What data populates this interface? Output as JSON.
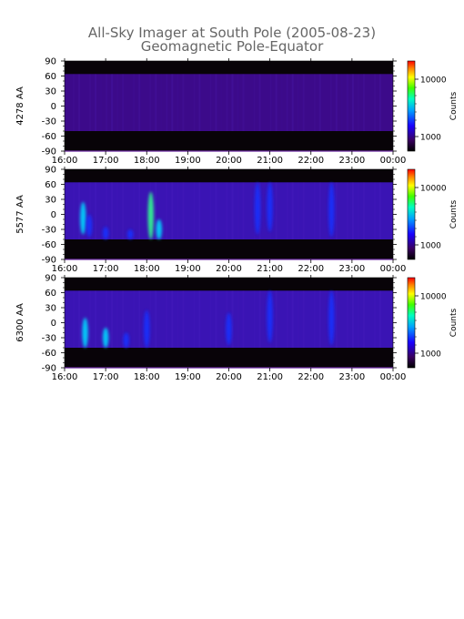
{
  "chart_data": [
    {
      "type": "heatmap",
      "ylabel": "4278 AA",
      "x_ticks": [
        "16:00",
        "17:00",
        "18:00",
        "19:00",
        "20:00",
        "21:00",
        "22:00",
        "23:00",
        "00:00"
      ],
      "y_ticks": [
        90,
        60,
        30,
        0,
        -30,
        -60,
        -90
      ],
      "ylim": [
        -90,
        90
      ],
      "x_range_hours": [
        16,
        24
      ],
      "colorbar": {
        "label": "Counts",
        "ticks": [
          "10000",
          "1000"
        ],
        "scale": "log"
      },
      "data_band": [
        -50,
        64
      ],
      "features": []
    },
    {
      "type": "heatmap",
      "ylabel": "5577 AA",
      "x_ticks": [
        "16:00",
        "17:00",
        "18:00",
        "19:00",
        "20:00",
        "21:00",
        "22:00",
        "23:00",
        "00:00"
      ],
      "y_ticks": [
        90,
        60,
        30,
        0,
        -30,
        -60,
        -90
      ],
      "ylim": [
        -90,
        90
      ],
      "x_range_hours": [
        16,
        24
      ],
      "colorbar": {
        "label": "Counts",
        "ticks": [
          "10000",
          "1000"
        ],
        "scale": "log"
      },
      "data_band": [
        -50,
        64
      ],
      "features": [
        {
          "t": 16.45,
          "lat_from": -40,
          "lat_to": 25,
          "level": "cyan"
        },
        {
          "t": 16.6,
          "lat_from": -45,
          "lat_to": 0,
          "level": "blue"
        },
        {
          "t": 17.0,
          "lat_from": -50,
          "lat_to": -25,
          "level": "blue"
        },
        {
          "t": 17.6,
          "lat_from": -50,
          "lat_to": -30,
          "level": "blue"
        },
        {
          "t": 18.1,
          "lat_from": -50,
          "lat_to": 45,
          "level": "green"
        },
        {
          "t": 18.3,
          "lat_from": -50,
          "lat_to": -10,
          "level": "cyan"
        },
        {
          "t": 20.7,
          "lat_from": -40,
          "lat_to": 64,
          "level": "blue"
        },
        {
          "t": 21.0,
          "lat_from": -35,
          "lat_to": 64,
          "level": "blue"
        },
        {
          "t": 22.5,
          "lat_from": -45,
          "lat_to": 64,
          "level": "blue"
        }
      ]
    },
    {
      "type": "heatmap",
      "ylabel": "6300 AA",
      "x_ticks": [
        "16:00",
        "17:00",
        "18:00",
        "19:00",
        "20:00",
        "21:00",
        "22:00",
        "23:00",
        "00:00"
      ],
      "y_ticks": [
        90,
        60,
        30,
        0,
        -30,
        -60,
        -90
      ],
      "ylim": [
        -90,
        90
      ],
      "x_range_hours": [
        16,
        24
      ],
      "colorbar": {
        "label": "Counts",
        "ticks": [
          "10000",
          "1000"
        ],
        "scale": "log"
      },
      "data_band": [
        -50,
        64
      ],
      "features": [
        {
          "t": 16.5,
          "lat_from": -50,
          "lat_to": 10,
          "level": "cyan"
        },
        {
          "t": 17.0,
          "lat_from": -50,
          "lat_to": -10,
          "level": "cyan"
        },
        {
          "t": 17.5,
          "lat_from": -50,
          "lat_to": -20,
          "level": "blue"
        },
        {
          "t": 18.0,
          "lat_from": -50,
          "lat_to": 25,
          "level": "blue"
        },
        {
          "t": 20.0,
          "lat_from": -45,
          "lat_to": 20,
          "level": "blue"
        },
        {
          "t": 21.0,
          "lat_from": -40,
          "lat_to": 64,
          "level": "blue"
        },
        {
          "t": 22.5,
          "lat_from": -45,
          "lat_to": 64,
          "level": "blue"
        }
      ]
    }
  ],
  "header": {
    "title": "All-Sky Imager at South Pole (2005-08-23)",
    "subtitle": "Geomagnetic Pole-Equator"
  }
}
